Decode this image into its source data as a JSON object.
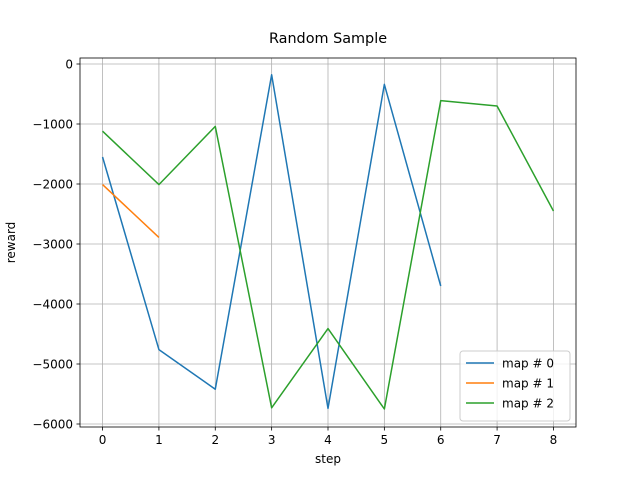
{
  "chart_data": {
    "type": "line",
    "title": "Random Sample",
    "xlabel": "step",
    "ylabel": "reward",
    "xlim": [
      -0.4,
      8.4
    ],
    "ylim": [
      -6050,
      100
    ],
    "xticks": [
      0,
      1,
      2,
      3,
      4,
      5,
      6,
      7,
      8
    ],
    "yticks": [
      0,
      -1000,
      -2000,
      -3000,
      -4000,
      -5000,
      -6000
    ],
    "ytick_labels": [
      "0",
      "−1000",
      "−2000",
      "−3000",
      "−4000",
      "−5000",
      "−6000"
    ],
    "grid": true,
    "legend_position": "lower-right",
    "series": [
      {
        "name": "map # 0",
        "color": "#1f77b4",
        "x": [
          0,
          1,
          2,
          3,
          4,
          5,
          6
        ],
        "y": [
          -1550,
          -4760,
          -5420,
          -180,
          -5740,
          -340,
          -3700
        ]
      },
      {
        "name": "map # 1",
        "color": "#ff7f0e",
        "x": [
          0,
          1
        ],
        "y": [
          -2010,
          -2890
        ]
      },
      {
        "name": "map # 2",
        "color": "#2ca02c",
        "x": [
          0,
          1,
          2,
          3,
          4,
          5,
          6,
          7,
          8
        ],
        "y": [
          -1120,
          -2010,
          -1040,
          -5730,
          -4410,
          -5750,
          -610,
          -700,
          -2450
        ]
      }
    ]
  }
}
